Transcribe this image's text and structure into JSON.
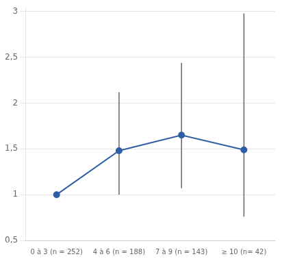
{
  "chart_data": {
    "type": "line",
    "categories": [
      "0 à 3 (n = 252)",
      "4 à 6 (n = 188)",
      "7 à 9 (n = 143)",
      "≥ 10 (n= 42)"
    ],
    "values": [
      1.0,
      1.48,
      1.65,
      1.49
    ],
    "error_low": [
      null,
      1.0,
      1.07,
      0.76
    ],
    "error_high": [
      null,
      2.12,
      2.44,
      2.98
    ],
    "color": "#2e5fa3",
    "marker": "circle",
    "ylim": [
      0.5,
      3.05
    ],
    "yticks": [
      {
        "value": 0.5,
        "label": "0,5"
      },
      1,
      {
        "value": 1.5,
        "label": "1,5"
      },
      2,
      {
        "value": 2.5,
        "label": "2,5"
      },
      3
    ],
    "grid": true
  }
}
